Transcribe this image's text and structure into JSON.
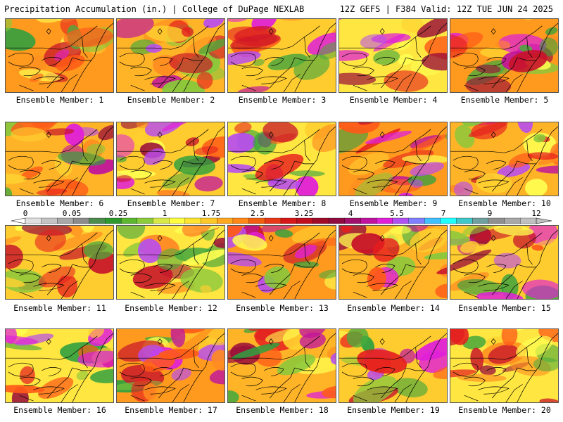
{
  "header": {
    "left": "Precipitation Accumulation (in.) | College of DuPage NEXLAB",
    "right": "12Z GEFS | F384 Valid: 12Z TUE JUN 24 2025"
  },
  "panels": [
    {
      "label": "Ensemble Member: 1"
    },
    {
      "label": "Ensemble Member: 2"
    },
    {
      "label": "Ensemble Member: 3"
    },
    {
      "label": "Ensemble Member: 4"
    },
    {
      "label": "Ensemble Member: 5"
    },
    {
      "label": "Ensemble Member: 6"
    },
    {
      "label": "Ensemble Member: 7"
    },
    {
      "label": "Ensemble Member: 8"
    },
    {
      "label": "Ensemble Member: 9"
    },
    {
      "label": "Ensemble Member: 10"
    },
    {
      "label": "Ensemble Member: 11"
    },
    {
      "label": "Ensemble Member: 12"
    },
    {
      "label": "Ensemble Member: 13"
    },
    {
      "label": "Ensemble Member: 14"
    },
    {
      "label": "Ensemble Member: 15"
    },
    {
      "label": "Ensemble Member: 16"
    },
    {
      "label": "Ensemble Member: 17"
    },
    {
      "label": "Ensemble Member: 18"
    },
    {
      "label": "Ensemble Member: 19"
    },
    {
      "label": "Ensemble Member: 20"
    }
  ],
  "colorbar": {
    "labels": [
      "0",
      "0.05",
      "0.25",
      "1",
      "1.75",
      "2.5",
      "3.25",
      "4",
      "5.5",
      "7",
      "9",
      "12"
    ],
    "colors": [
      "#e0e0e0",
      "#c4c4c4",
      "#a8a8a8",
      "#8c8c8c",
      "#4c8c4c",
      "#2e9a2e",
      "#5cb830",
      "#8ccc3c",
      "#d8e84a",
      "#ffff40",
      "#ffe430",
      "#ffc828",
      "#ffa820",
      "#ff8818",
      "#f06010",
      "#e83818",
      "#d81818",
      "#c01020",
      "#a00c28",
      "#900c40",
      "#a0106c",
      "#c014a0",
      "#e020d8",
      "#b050f0",
      "#8080ff",
      "#40c0ff",
      "#20ffff",
      "#40c8c8",
      "#70a0a0",
      "#909090",
      "#a8a8a8",
      "#c0c0c0"
    ]
  }
}
